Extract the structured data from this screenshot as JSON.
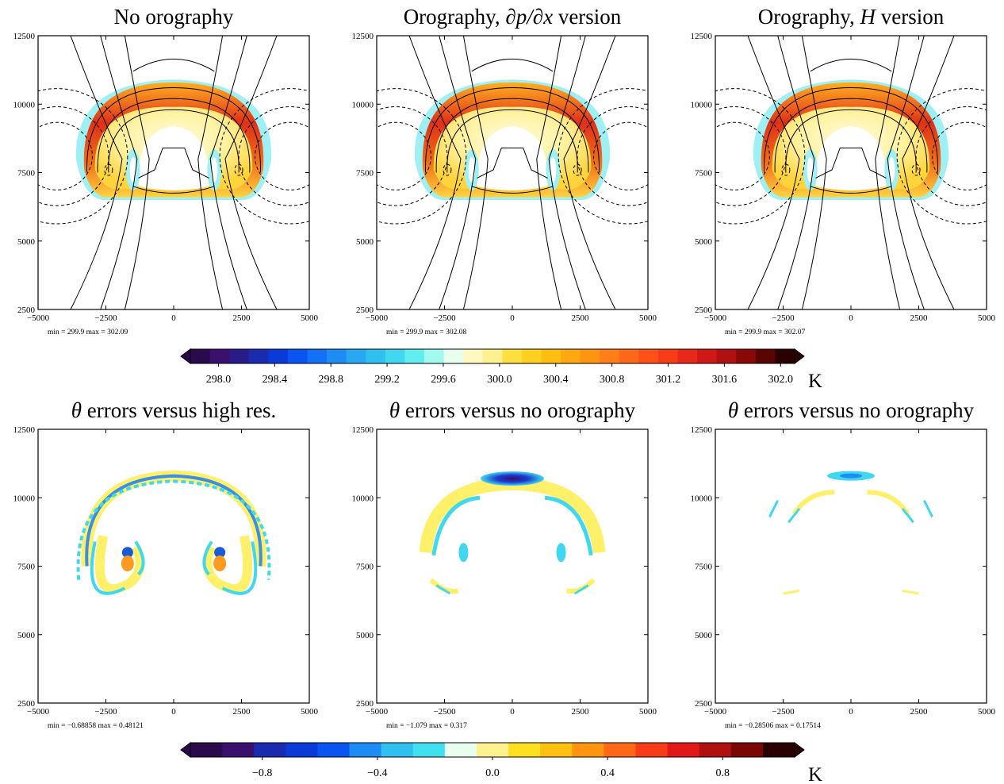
{
  "panels": [
    {
      "title_parts": [
        {
          "t": "No orography",
          "i": false
        }
      ],
      "stats": "min = 299.9    max = 302.09",
      "kind": "theta"
    },
    {
      "title_parts": [
        {
          "t": "Orography, ",
          "i": false
        },
        {
          "t": "∂p/∂x",
          "i": true
        },
        {
          "t": " version",
          "i": false
        }
      ],
      "stats": "min = 299.9    max = 302.08",
      "kind": "theta"
    },
    {
      "title_parts": [
        {
          "t": "Orography, ",
          "i": false
        },
        {
          "t": "H",
          "i": true
        },
        {
          "t": " version",
          "i": false
        }
      ],
      "stats": "min = 299.9    max = 302.07",
      "kind": "theta"
    },
    {
      "title_parts": [
        {
          "t": "θ",
          "i": true
        },
        {
          "t": " errors versus high res.",
          "i": false
        }
      ],
      "stats": "min = −0.68858    max = 0.48121",
      "kind": "err_highres"
    },
    {
      "title_parts": [
        {
          "t": "θ",
          "i": true
        },
        {
          "t": " errors versus no orography",
          "i": false
        }
      ],
      "stats": "min = −1.079    max = 0.317",
      "kind": "err_dpdx"
    },
    {
      "title_parts": [
        {
          "t": "θ",
          "i": true
        },
        {
          "t": " errors versus no orography",
          "i": false
        }
      ],
      "stats": "min = −0.28506    max = 0.17514",
      "kind": "err_h"
    }
  ],
  "axes": {
    "x_ticks": [
      "−5000",
      "−2500",
      "0",
      "2500",
      "5000"
    ],
    "y_ticks": [
      "2500",
      "5000",
      "7500",
      "10000",
      "12500"
    ]
  },
  "colorbars": [
    {
      "labels": [
        "298.0",
        "298.4",
        "298.8",
        "299.2",
        "299.6",
        "300.0",
        "300.4",
        "300.8",
        "301.2",
        "301.6",
        "302.0"
      ],
      "unit": "K"
    },
    {
      "labels": [
        "−0.8",
        "−0.4",
        "0.0",
        "0.4",
        "0.8"
      ],
      "unit": "K"
    }
  ],
  "colors": {
    "theta_cb": [
      "#2a0a4a",
      "#3a0f6e",
      "#2a1b8a",
      "#1a2bb0",
      "#0a3ad8",
      "#0a55f2",
      "#1470f5",
      "#1e8cf5",
      "#28a8f2",
      "#30c0f0",
      "#40d8f0",
      "#60eef0",
      "#a0faf0",
      "#e8fff0",
      "#fff8c0",
      "#fff090",
      "#ffe040",
      "#ffd020",
      "#ffbe10",
      "#ffa810",
      "#ff9410",
      "#ff7e18",
      "#ff6818",
      "#ff5018",
      "#f83c18",
      "#e82818",
      "#d01818",
      "#b01010",
      "#8a0808",
      "#5a0404",
      "#2a0000"
    ],
    "err_cb": [
      "#2a0a4a",
      "#3a0f6e",
      "#1a2bb0",
      "#0a3ad8",
      "#0a55f2",
      "#1e8cf5",
      "#30c0f0",
      "#40e0f0",
      "#e8fff0",
      "#fff090",
      "#ffe020",
      "#ffc010",
      "#ff9410",
      "#ff6818",
      "#f83c18",
      "#e01818",
      "#b01010",
      "#7a0606",
      "#2a0000"
    ]
  },
  "chart_data": [
    {
      "type": "heatmap",
      "title": "No orography",
      "xlim": [
        -5000,
        5000
      ],
      "ylim": [
        2500,
        12500
      ],
      "min": 299.9,
      "max": 302.09
    },
    {
      "type": "heatmap",
      "title": "Orography, ∂p/∂x version",
      "xlim": [
        -5000,
        5000
      ],
      "ylim": [
        2500,
        12500
      ],
      "min": 299.9,
      "max": 302.08
    },
    {
      "type": "heatmap",
      "title": "Orography, H version",
      "xlim": [
        -5000,
        5000
      ],
      "ylim": [
        2500,
        12500
      ],
      "min": 299.9,
      "max": 302.07
    },
    {
      "type": "heatmap",
      "title": "θ errors versus high res.",
      "xlim": [
        -5000,
        5000
      ],
      "ylim": [
        2500,
        12500
      ],
      "min": -0.68858,
      "max": 0.48121
    },
    {
      "type": "heatmap",
      "title": "θ errors versus no orography",
      "xlim": [
        -5000,
        5000
      ],
      "ylim": [
        2500,
        12500
      ],
      "min": -1.079,
      "max": 0.317
    },
    {
      "type": "heatmap",
      "title": "θ errors versus no orography",
      "xlim": [
        -5000,
        5000
      ],
      "ylim": [
        2500,
        12500
      ],
      "min": -0.28506,
      "max": 0.17514
    }
  ]
}
